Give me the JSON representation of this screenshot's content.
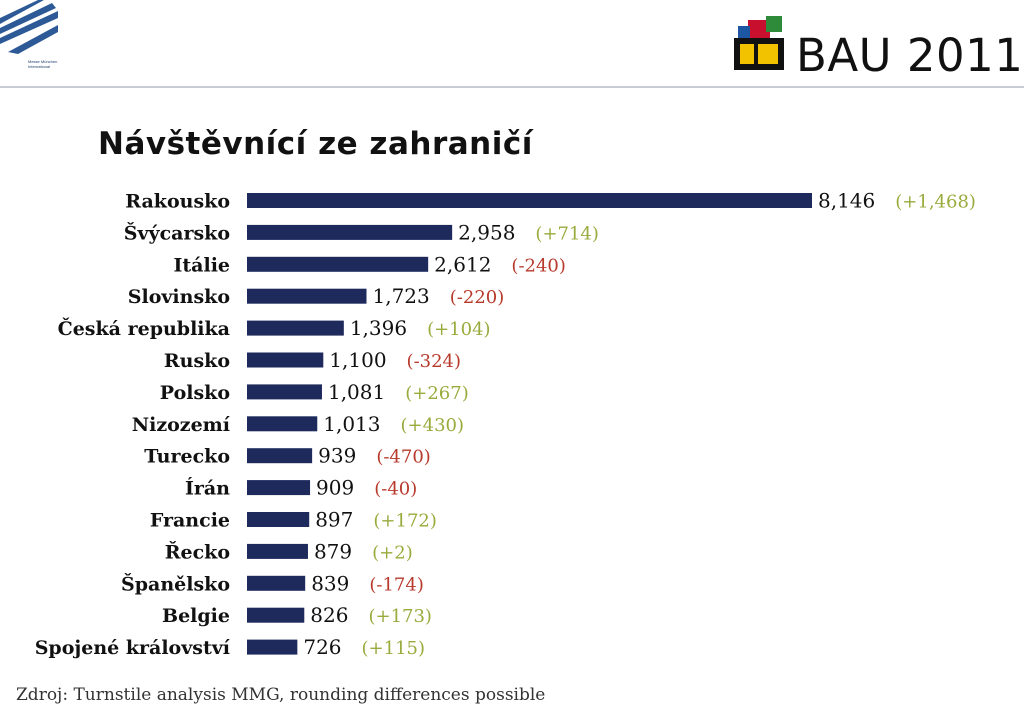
{
  "header": {
    "left_logo_text": "Messe München\nInternational",
    "event_logo_text": "BAU 2011"
  },
  "footer": {
    "source": "Zdroj: Turnstile analysis MMG, rounding differences possible"
  },
  "colors": {
    "bar": "#1f2a5c",
    "positive_change": "#9aaa3c",
    "negative_change": "#b83a2c",
    "label": "#111111"
  },
  "chart_data": {
    "type": "bar",
    "orientation": "horizontal",
    "title": "Návštěvnící ze zahraničí",
    "categories": [
      "Rakousko",
      "Švýcarsko",
      "Itálie",
      "Slovinsko",
      "Česká republika",
      "Rusko",
      "Polsko",
      "Nizozemí",
      "Turecko",
      "Írán",
      "Francie",
      "Řecko",
      "Španělsko",
      "Belgie",
      "Spojené království"
    ],
    "values": [
      8146,
      2958,
      2612,
      1723,
      1396,
      1100,
      1081,
      1013,
      939,
      909,
      897,
      879,
      839,
      826,
      726
    ],
    "value_labels": [
      "8,146",
      "2,958",
      "2,612",
      "1,723",
      "1,396",
      "1,100",
      "1,081",
      "1,013",
      "939",
      "909",
      "897",
      "879",
      "839",
      "826",
      "726"
    ],
    "change_labels": [
      "(+1,468)",
      "(+714)",
      "(-240)",
      "(-220)",
      "(+104)",
      "(-324)",
      "(+267)",
      "(+430)",
      "(-470)",
      "(-40)",
      "(+172)",
      "(+2)",
      "(-174)",
      "(+173)",
      "(+115)"
    ],
    "changes": [
      1468,
      714,
      -240,
      -220,
      104,
      -324,
      267,
      430,
      -470,
      -40,
      172,
      2,
      -174,
      173,
      115
    ],
    "xlim": [
      0,
      8146
    ],
    "grid": false,
    "legend": "none"
  }
}
